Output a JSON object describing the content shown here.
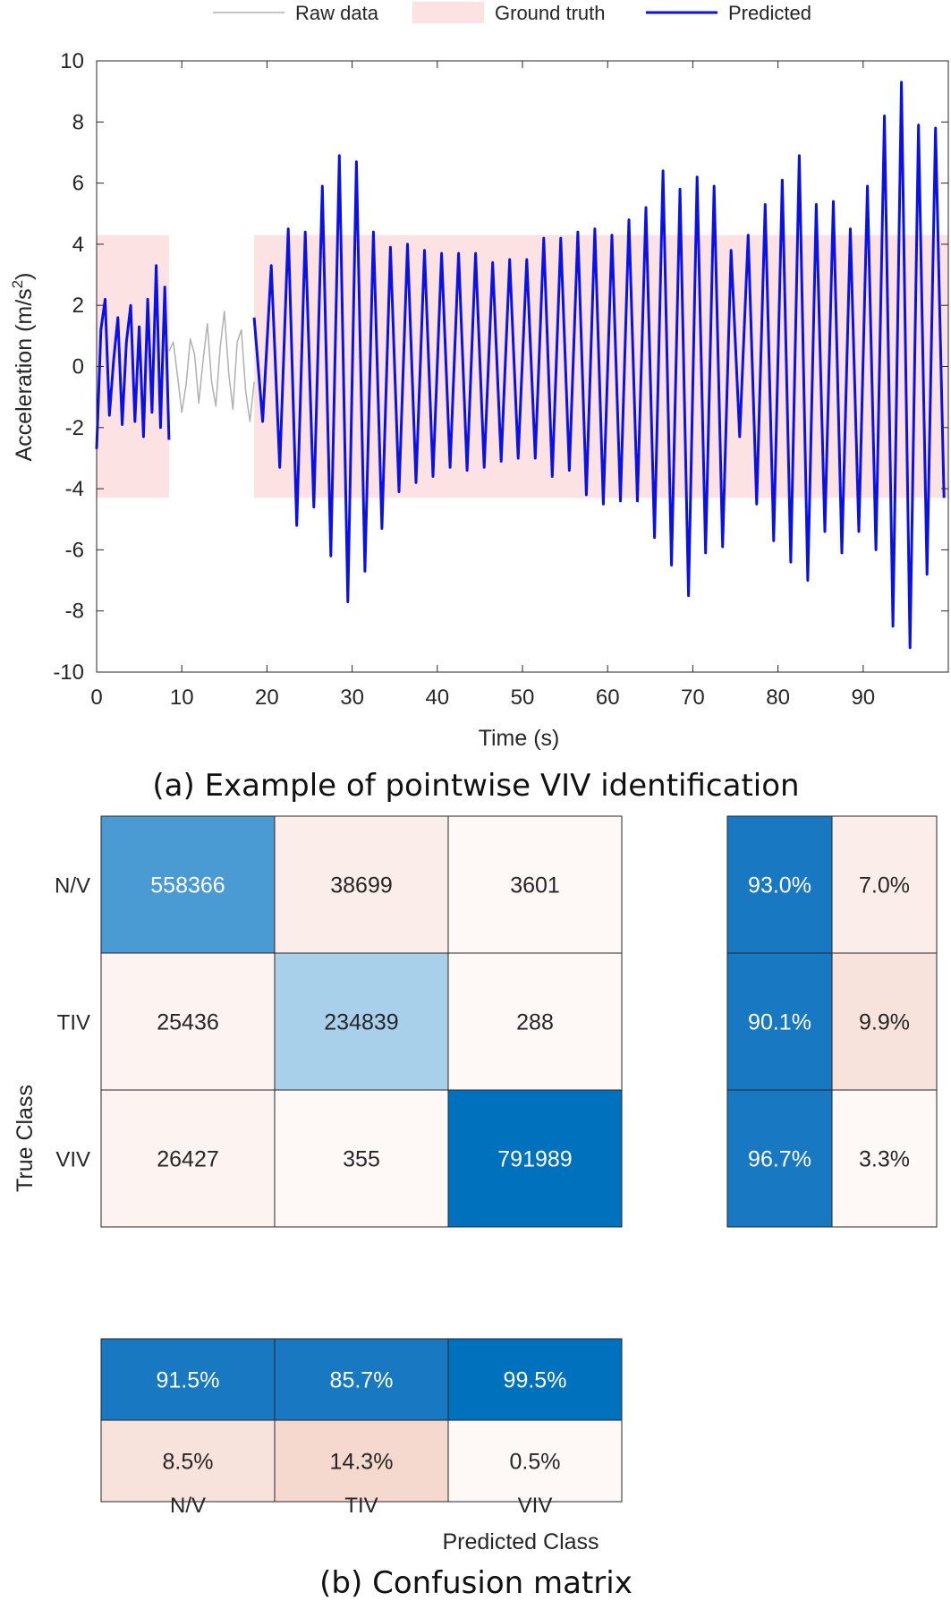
{
  "chart_data": [
    {
      "type": "line",
      "title": "",
      "caption": "(a) Example of pointwise VIV identification",
      "xlabel": "Time (s)",
      "ylabel": "Acceleration (m/s",
      "ylabel_sup": "2",
      "ylabel_close": ")",
      "xlim": [
        0,
        100
      ],
      "ylim": [
        -10,
        10
      ],
      "xticks": [
        "0",
        "10",
        "20",
        "30",
        "40",
        "50",
        "60",
        "70",
        "80",
        "90"
      ],
      "yticks": [
        "10",
        "8",
        "6",
        "4",
        "2",
        "0",
        "-2",
        "-4",
        "-6",
        "-8",
        "-10"
      ],
      "legend": {
        "position": "top",
        "items": [
          "Raw data",
          "Ground truth",
          "Predicted"
        ]
      },
      "ground_truth_regions": [
        {
          "x0": 0,
          "x1": 8.5,
          "y0": -4.3,
          "y1": 4.3
        },
        {
          "x0": 18.5,
          "x1": 100,
          "y0": -4.3,
          "y1": 4.3
        }
      ],
      "series": [
        {
          "name": "Raw data",
          "color": "#b0b0b0",
          "x": [
            8.5,
            9,
            9.5,
            10,
            10.5,
            11,
            11.5,
            12,
            12.5,
            13,
            13.5,
            14,
            14.5,
            15,
            15.5,
            16,
            16.5,
            17,
            17.5,
            18,
            18.5
          ],
          "y": [
            0.5,
            0.8,
            -0.3,
            -1.5,
            -0.6,
            0.9,
            0.4,
            -1.2,
            0.2,
            1.4,
            -0.5,
            -1.3,
            0.6,
            1.8,
            -0.2,
            -1.4,
            0.8,
            1.2,
            -0.8,
            -1.8,
            -0.5
          ]
        },
        {
          "name": "Predicted",
          "color": "#0a10e8",
          "segments": [
            {
              "x": [
                0,
                0.5,
                1,
                1.5,
                2,
                2.5,
                3,
                3.5,
                4,
                4.5,
                5,
                5.5,
                6,
                6.5,
                7,
                7.5,
                8,
                8.5
              ],
              "y": [
                -2.7,
                1.2,
                2.2,
                -1.6,
                0.2,
                1.6,
                -1.9,
                0.8,
                2.0,
                -1.8,
                1.3,
                -2.3,
                2.2,
                -1.5,
                3.3,
                -2.0,
                2.6,
                -2.4
              ]
            },
            {
              "x": [
                18.5,
                19.5,
                20.5,
                21.5,
                22.5,
                23.5,
                24.5,
                25.5,
                26.5,
                27.5,
                28.5,
                29.5,
                30.5,
                31.5,
                32.5,
                33.5,
                34.5,
                35.5,
                36.5,
                37.5,
                38.5,
                39.5,
                40.5,
                41.5,
                42.5,
                43.5,
                44.5,
                45.5,
                46.5,
                47.5,
                48.5,
                49.5,
                50.5,
                51.5,
                52.5,
                53.5,
                54.5,
                55.5,
                56.5,
                57.5,
                58.5,
                59.5,
                60.5,
                61.5,
                62.5,
                63.5,
                64.5,
                65.5,
                66.5,
                67.5,
                68.5,
                69.5,
                70.5,
                71.5,
                72.5,
                73.5,
                74.5,
                75.5,
                76.5,
                77.5,
                78.5,
                79.5,
                80.5,
                81.5,
                82.5,
                83.5,
                84.5,
                85.5,
                86.5,
                87.5,
                88.5,
                89.5,
                90.5,
                91.5,
                92.5,
                93.5,
                94.5,
                95.5,
                96.5,
                97.5,
                98.5,
                99.5
              ],
              "y": [
                1.6,
                -1.8,
                3.3,
                -3.3,
                4.5,
                -5.2,
                4.4,
                -4.6,
                5.9,
                -6.2,
                6.9,
                -7.7,
                6.7,
                -6.7,
                4.4,
                -5.3,
                3.9,
                -4.1,
                4.0,
                -3.8,
                3.8,
                -3.6,
                3.7,
                -3.3,
                3.7,
                -3.4,
                3.7,
                -3.3,
                3.4,
                -3.1,
                3.5,
                -3.0,
                3.5,
                -3.0,
                4.2,
                -3.6,
                4.2,
                -3.4,
                4.4,
                -4.2,
                4.5,
                -4.5,
                4.3,
                -4.4,
                4.8,
                -4.4,
                5.2,
                -5.6,
                6.4,
                -6.5,
                5.8,
                -7.5,
                6.2,
                -6.1,
                5.9,
                -5.9,
                3.8,
                -2.3,
                4.3,
                -4.5,
                5.3,
                -5.7,
                6.1,
                -6.4,
                6.9,
                -7.0,
                5.3,
                -5.4,
                5.4,
                -6.1,
                4.5,
                -5.4,
                5.9,
                -6.0,
                8.2,
                -8.5,
                9.3,
                -9.2,
                7.9,
                -6.8,
                7.8,
                -4.3
              ]
            }
          ]
        }
      ]
    },
    {
      "type": "heatmap",
      "caption": "(b) Confusion matrix",
      "xlabel": "Predicted Class",
      "ylabel": "True Class",
      "classes": [
        "N/V",
        "TIV",
        "VIV"
      ],
      "matrix": [
        [
          "558366",
          "38699",
          "3601"
        ],
        [
          "25436",
          "234839",
          "288"
        ],
        [
          "26427",
          "355",
          "791989"
        ]
      ],
      "row_summary": [
        [
          "93.0%",
          "7.0%"
        ],
        [
          "90.1%",
          "9.9%"
        ],
        [
          "96.7%",
          "3.3%"
        ]
      ],
      "column_summary": [
        [
          "91.5%",
          "85.7%",
          "99.5%"
        ],
        [
          "8.5%",
          "14.3%",
          "0.5%"
        ]
      ],
      "colors": {
        "strong_blue": "#0072bd",
        "mid_blue": "#1878c1",
        "light_blue": "#a9d0ea",
        "medium_blue": "#4a9ad3",
        "pale_red_1": "#f8e2dc",
        "pale_red_2": "#fbeeea",
        "pale_red_3": "#fdf3f0",
        "pale_red_4": "#fef8f6",
        "tan": "#f5d8ce"
      }
    }
  ]
}
